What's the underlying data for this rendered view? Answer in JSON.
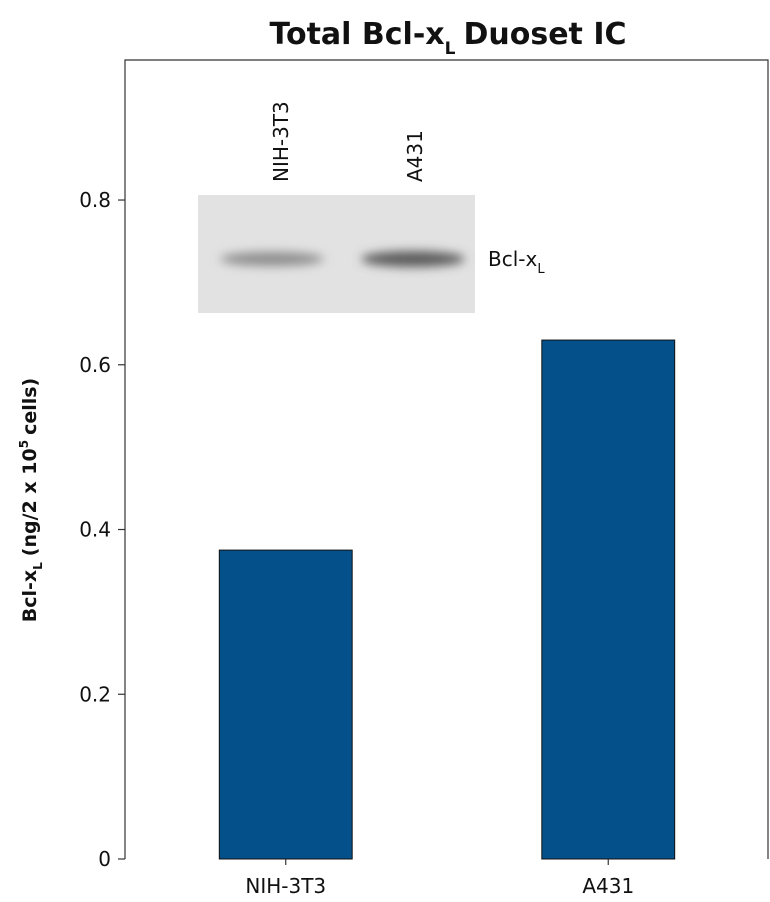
{
  "chart_data": {
    "type": "bar",
    "title": [
      "Total Bcl-x",
      "L",
      "Duoset IC"
    ],
    "y_label": [
      "Bcl-x",
      "L",
      "(ng/2 x 10",
      "5",
      "cells)"
    ],
    "categories": [
      "NIH-3T3",
      "A431"
    ],
    "values": [
      0.375,
      0.63
    ],
    "color": "#03508a",
    "ylim": [
      0,
      0.97
    ],
    "yticks": [
      0,
      0.2,
      0.4,
      0.6,
      0.8
    ],
    "inset": {
      "lanes": [
        "NIH-3T3",
        "A431"
      ],
      "band_label": [
        "Bcl-x",
        "L"
      ]
    }
  }
}
